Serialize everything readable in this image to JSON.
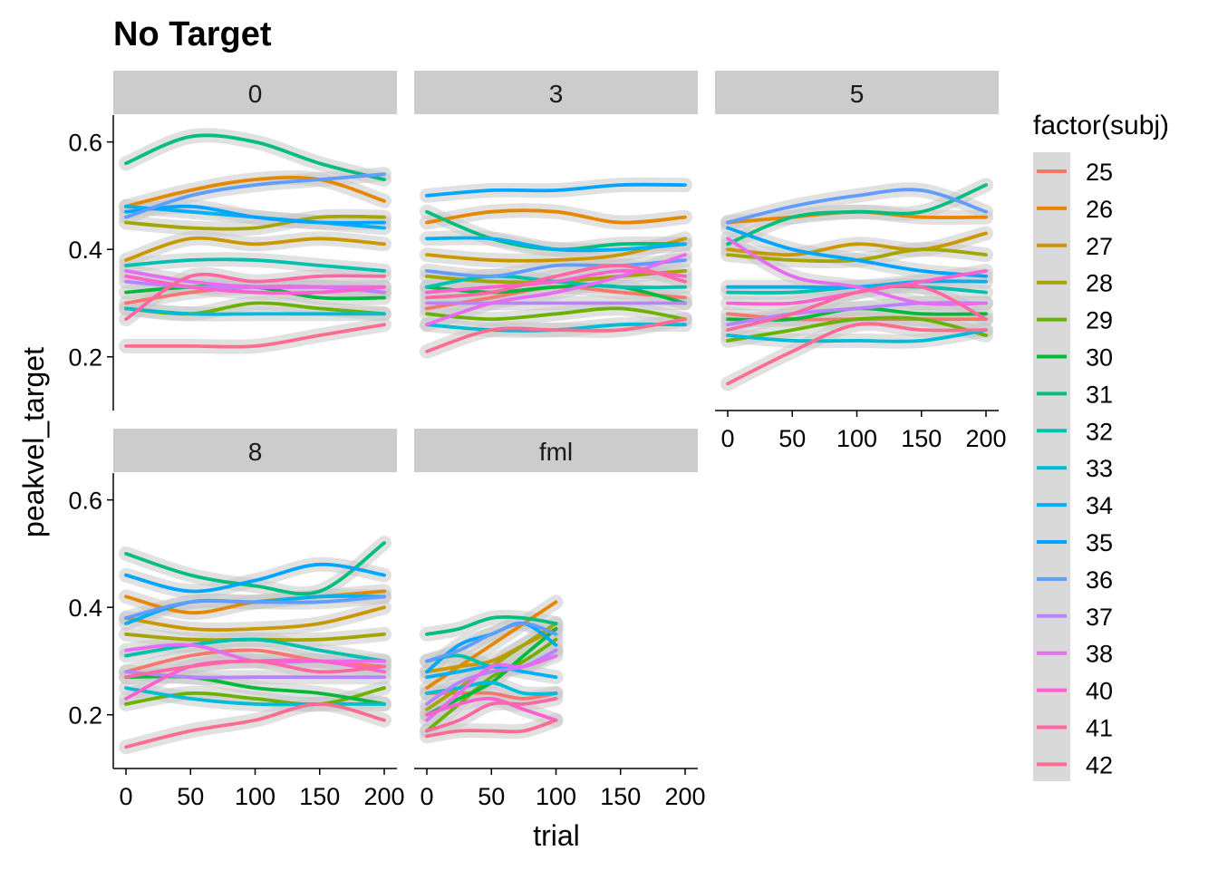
{
  "chart_data": {
    "type": "line",
    "title": "No Target",
    "xlabel": "trial",
    "ylabel": "peakvel_target",
    "xlim": [
      0,
      200
    ],
    "ylim": [
      0.1,
      0.65
    ],
    "x_ticks": [
      0,
      50,
      100,
      150,
      200
    ],
    "y_ticks": [
      0.2,
      0.4,
      0.6
    ],
    "x_tick_labels": [
      "0",
      "50",
      "100",
      "150",
      "200"
    ],
    "y_tick_labels": [
      "0.2",
      "0.4",
      "0.6"
    ],
    "grid": false,
    "smoothing": "loess with grey confidence band",
    "legend": {
      "title": "factor(subj)",
      "position": "right",
      "items": [
        {
          "subj": "25",
          "color": "#F8766D"
        },
        {
          "subj": "26",
          "color": "#E58700"
        },
        {
          "subj": "27",
          "color": "#C99800"
        },
        {
          "subj": "28",
          "color": "#A3A500"
        },
        {
          "subj": "29",
          "color": "#6BB100"
        },
        {
          "subj": "30",
          "color": "#00BA38"
        },
        {
          "subj": "31",
          "color": "#00BF7D"
        },
        {
          "subj": "32",
          "color": "#00C0AF"
        },
        {
          "subj": "33",
          "color": "#00BCD8"
        },
        {
          "subj": "34",
          "color": "#00B0F6"
        },
        {
          "subj": "35",
          "color": "#00A5FF"
        },
        {
          "subj": "36",
          "color": "#619CFF"
        },
        {
          "subj": "37",
          "color": "#B983FF"
        },
        {
          "subj": "38",
          "color": "#E76BF3"
        },
        {
          "subj": "40",
          "color": "#FD61D1"
        },
        {
          "subj": "41",
          "color": "#FF67A4"
        },
        {
          "subj": "42",
          "color": "#FF6C91"
        }
      ]
    },
    "panels": [
      {
        "label": "0",
        "x": [
          0,
          50,
          100,
          150,
          200
        ],
        "series": [
          {
            "subj": "25",
            "values": [
              0.3,
              0.32,
              0.33,
              0.33,
              0.32
            ]
          },
          {
            "subj": "26",
            "values": [
              0.48,
              0.51,
              0.53,
              0.53,
              0.49
            ]
          },
          {
            "subj": "27",
            "values": [
              0.38,
              0.42,
              0.41,
              0.42,
              0.41
            ]
          },
          {
            "subj": "28",
            "values": [
              0.45,
              0.44,
              0.44,
              0.46,
              0.46
            ]
          },
          {
            "subj": "29",
            "values": [
              0.29,
              0.28,
              0.3,
              0.29,
              0.28
            ]
          },
          {
            "subj": "30",
            "values": [
              0.32,
              0.33,
              0.33,
              0.31,
              0.31
            ]
          },
          {
            "subj": "31",
            "values": [
              0.56,
              0.61,
              0.6,
              0.56,
              0.53
            ]
          },
          {
            "subj": "32",
            "values": [
              0.37,
              0.38,
              0.38,
              0.37,
              0.36
            ]
          },
          {
            "subj": "33",
            "values": [
              0.29,
              0.28,
              0.28,
              0.28,
              0.28
            ]
          },
          {
            "subj": "34",
            "values": [
              0.48,
              0.47,
              0.46,
              0.45,
              0.44
            ]
          },
          {
            "subj": "35",
            "values": [
              0.47,
              0.48,
              0.46,
              0.45,
              0.45
            ]
          },
          {
            "subj": "36",
            "values": [
              0.46,
              0.5,
              0.52,
              0.53,
              0.54
            ]
          },
          {
            "subj": "37",
            "values": [
              0.34,
              0.33,
              0.33,
              0.33,
              0.32
            ]
          },
          {
            "subj": "38",
            "values": [
              0.36,
              0.34,
              0.33,
              0.33,
              0.33
            ]
          },
          {
            "subj": "40",
            "values": [
              0.35,
              0.33,
              0.32,
              0.32,
              0.33
            ]
          },
          {
            "subj": "41",
            "values": [
              0.27,
              0.35,
              0.34,
              0.35,
              0.35
            ]
          },
          {
            "subj": "42",
            "values": [
              0.22,
              0.22,
              0.22,
              0.24,
              0.26
            ]
          }
        ]
      },
      {
        "label": "3",
        "x": [
          0,
          50,
          100,
          150,
          200
        ],
        "series": [
          {
            "subj": "25",
            "values": [
              0.29,
              0.31,
              0.33,
              0.32,
              0.31
            ]
          },
          {
            "subj": "26",
            "values": [
              0.45,
              0.47,
              0.47,
              0.45,
              0.46
            ]
          },
          {
            "subj": "27",
            "values": [
              0.39,
              0.38,
              0.38,
              0.39,
              0.42
            ]
          },
          {
            "subj": "28",
            "values": [
              0.35,
              0.34,
              0.34,
              0.35,
              0.36
            ]
          },
          {
            "subj": "29",
            "values": [
              0.28,
              0.27,
              0.28,
              0.29,
              0.27
            ]
          },
          {
            "subj": "30",
            "values": [
              0.33,
              0.32,
              0.33,
              0.33,
              0.3
            ]
          },
          {
            "subj": "31",
            "values": [
              0.47,
              0.42,
              0.4,
              0.41,
              0.41
            ]
          },
          {
            "subj": "32",
            "values": [
              0.33,
              0.35,
              0.34,
              0.33,
              0.33
            ]
          },
          {
            "subj": "33",
            "values": [
              0.26,
              0.25,
              0.25,
              0.26,
              0.26
            ]
          },
          {
            "subj": "34",
            "values": [
              0.42,
              0.42,
              0.4,
              0.4,
              0.41
            ]
          },
          {
            "subj": "35",
            "values": [
              0.5,
              0.51,
              0.51,
              0.52,
              0.52
            ]
          },
          {
            "subj": "36",
            "values": [
              0.36,
              0.35,
              0.37,
              0.37,
              0.38
            ]
          },
          {
            "subj": "37",
            "values": [
              0.3,
              0.3,
              0.3,
              0.3,
              0.3
            ]
          },
          {
            "subj": "38",
            "values": [
              0.26,
              0.3,
              0.32,
              0.35,
              0.39
            ]
          },
          {
            "subj": "40",
            "values": [
              0.32,
              0.33,
              0.34,
              0.36,
              0.35
            ]
          },
          {
            "subj": "41",
            "values": [
              0.31,
              0.32,
              0.35,
              0.37,
              0.34
            ]
          },
          {
            "subj": "42",
            "values": [
              0.21,
              0.25,
              0.25,
              0.25,
              0.27
            ]
          }
        ]
      },
      {
        "label": "5",
        "x": [
          0,
          50,
          100,
          150,
          200
        ],
        "series": [
          {
            "subj": "25",
            "values": [
              0.28,
              0.27,
              0.27,
              0.27,
              0.27
            ]
          },
          {
            "subj": "26",
            "values": [
              0.45,
              0.46,
              0.47,
              0.46,
              0.46
            ]
          },
          {
            "subj": "27",
            "values": [
              0.4,
              0.39,
              0.41,
              0.4,
              0.43
            ]
          },
          {
            "subj": "28",
            "values": [
              0.39,
              0.38,
              0.38,
              0.4,
              0.39
            ]
          },
          {
            "subj": "29",
            "values": [
              0.23,
              0.25,
              0.27,
              0.27,
              0.24
            ]
          },
          {
            "subj": "30",
            "values": [
              0.27,
              0.27,
              0.29,
              0.28,
              0.28
            ]
          },
          {
            "subj": "31",
            "values": [
              0.41,
              0.46,
              0.47,
              0.47,
              0.52
            ]
          },
          {
            "subj": "32",
            "values": [
              0.32,
              0.32,
              0.33,
              0.33,
              0.32
            ]
          },
          {
            "subj": "33",
            "values": [
              0.24,
              0.23,
              0.23,
              0.23,
              0.25
            ]
          },
          {
            "subj": "34",
            "values": [
              0.33,
              0.33,
              0.33,
              0.34,
              0.34
            ]
          },
          {
            "subj": "35",
            "values": [
              0.44,
              0.4,
              0.38,
              0.36,
              0.35
            ]
          },
          {
            "subj": "36",
            "values": [
              0.45,
              0.48,
              0.5,
              0.51,
              0.47
            ]
          },
          {
            "subj": "37",
            "values": [
              0.26,
              0.28,
              0.29,
              0.3,
              0.3
            ]
          },
          {
            "subj": "38",
            "values": [
              0.42,
              0.35,
              0.33,
              0.3,
              0.3
            ]
          },
          {
            "subj": "40",
            "values": [
              0.3,
              0.3,
              0.32,
              0.34,
              0.36
            ]
          },
          {
            "subj": "41",
            "values": [
              0.25,
              0.28,
              0.32,
              0.33,
              0.27
            ]
          },
          {
            "subj": "42",
            "values": [
              0.15,
              0.21,
              0.26,
              0.25,
              0.25
            ]
          }
        ]
      },
      {
        "label": "8",
        "x": [
          0,
          50,
          100,
          150,
          200
        ],
        "series": [
          {
            "subj": "25",
            "values": [
              0.28,
              0.31,
              0.32,
              0.3,
              0.29
            ]
          },
          {
            "subj": "26",
            "values": [
              0.42,
              0.39,
              0.41,
              0.42,
              0.43
            ]
          },
          {
            "subj": "27",
            "values": [
              0.38,
              0.36,
              0.36,
              0.37,
              0.4
            ]
          },
          {
            "subj": "28",
            "values": [
              0.35,
              0.34,
              0.34,
              0.34,
              0.35
            ]
          },
          {
            "subj": "29",
            "values": [
              0.22,
              0.24,
              0.23,
              0.22,
              0.25
            ]
          },
          {
            "subj": "30",
            "values": [
              0.27,
              0.27,
              0.25,
              0.24,
              0.22
            ]
          },
          {
            "subj": "31",
            "values": [
              0.5,
              0.46,
              0.44,
              0.43,
              0.52
            ]
          },
          {
            "subj": "32",
            "values": [
              0.31,
              0.33,
              0.34,
              0.32,
              0.3
            ]
          },
          {
            "subj": "33",
            "values": [
              0.25,
              0.23,
              0.22,
              0.22,
              0.22
            ]
          },
          {
            "subj": "34",
            "values": [
              0.37,
              0.41,
              0.41,
              0.42,
              0.42
            ]
          },
          {
            "subj": "35",
            "values": [
              0.46,
              0.43,
              0.45,
              0.48,
              0.46
            ]
          },
          {
            "subj": "36",
            "values": [
              0.38,
              0.41,
              0.41,
              0.41,
              0.42
            ]
          },
          {
            "subj": "37",
            "values": [
              0.28,
              0.27,
              0.27,
              0.27,
              0.27
            ]
          },
          {
            "subj": "38",
            "values": [
              0.32,
              0.33,
              0.3,
              0.3,
              0.3
            ]
          },
          {
            "subj": "40",
            "values": [
              0.23,
              0.29,
              0.3,
              0.3,
              0.28
            ]
          },
          {
            "subj": "41",
            "values": [
              0.27,
              0.29,
              0.3,
              0.28,
              0.29
            ]
          },
          {
            "subj": "42",
            "values": [
              0.14,
              0.17,
              0.19,
              0.22,
              0.19
            ]
          }
        ]
      },
      {
        "label": "fml",
        "x": [
          0,
          25,
          50,
          75,
          100
        ],
        "series": [
          {
            "subj": "25",
            "values": [
              0.24,
              0.24,
              0.24,
              0.23,
              0.24
            ]
          },
          {
            "subj": "26",
            "values": [
              0.25,
              0.29,
              0.33,
              0.37,
              0.41
            ]
          },
          {
            "subj": "27",
            "values": [
              0.28,
              0.29,
              0.3,
              0.33,
              0.36
            ]
          },
          {
            "subj": "28",
            "values": [
              0.21,
              0.25,
              0.29,
              0.33,
              0.37
            ]
          },
          {
            "subj": "29",
            "values": [
              0.17,
              0.22,
              0.27,
              0.3,
              0.34
            ]
          },
          {
            "subj": "30",
            "values": [
              0.2,
              0.23,
              0.26,
              0.31,
              0.36
            ]
          },
          {
            "subj": "31",
            "values": [
              0.35,
              0.36,
              0.38,
              0.38,
              0.37
            ]
          },
          {
            "subj": "32",
            "values": [
              0.3,
              0.31,
              0.29,
              0.29,
              0.32
            ]
          },
          {
            "subj": "33",
            "values": [
              0.24,
              0.25,
              0.26,
              0.24,
              0.24
            ]
          },
          {
            "subj": "34",
            "values": [
              0.27,
              0.28,
              0.29,
              0.28,
              0.27
            ]
          },
          {
            "subj": "35",
            "values": [
              0.28,
              0.33,
              0.35,
              0.37,
              0.33
            ]
          },
          {
            "subj": "36",
            "values": [
              0.3,
              0.32,
              0.35,
              0.37,
              0.35
            ]
          },
          {
            "subj": "37",
            "values": [
              0.22,
              0.26,
              0.28,
              0.29,
              0.32
            ]
          },
          {
            "subj": "38",
            "values": [
              0.19,
              0.24,
              0.29,
              0.29,
              0.31
            ]
          },
          {
            "subj": "40",
            "values": [
              0.2,
              0.22,
              0.23,
              0.21,
              0.19
            ]
          },
          {
            "subj": "41",
            "values": [
              0.17,
              0.19,
              0.22,
              0.22,
              0.23
            ]
          },
          {
            "subj": "42",
            "values": [
              0.16,
              0.17,
              0.17,
              0.17,
              0.19
            ]
          }
        ]
      }
    ]
  }
}
